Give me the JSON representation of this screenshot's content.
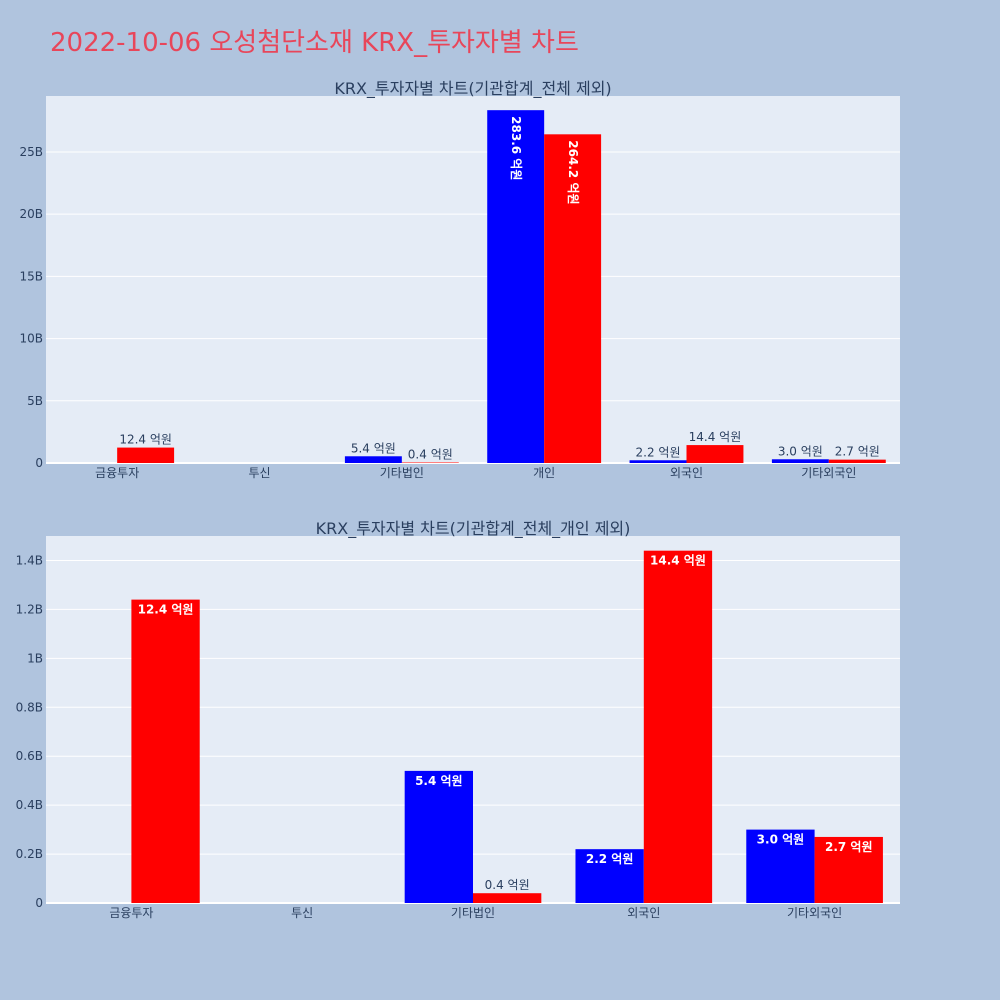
{
  "page": {
    "title": "2022-10-06 오성첨단소재 KRX_투자자별 차트"
  },
  "colors": {
    "background": "#b0c4de",
    "plot_bg": "#e5ecf6",
    "title": "#e8465a",
    "series_blue": "#0000ff",
    "series_red": "#ff0000"
  },
  "chart_data": [
    {
      "type": "bar",
      "title": "KRX_투자자별 차트(기관합계_전체 제외)",
      "categories": [
        "금융투자",
        "투신",
        "기타법인",
        "개인",
        "외국인",
        "기타외국인"
      ],
      "series": [
        {
          "color": "#0000ff",
          "values": [
            0,
            0,
            0.54,
            28.36,
            0.22,
            0.3
          ],
          "labels": [
            "",
            "",
            "5.4 억원",
            "283.6 억원",
            "2.2 억원",
            "3.0 억원"
          ]
        },
        {
          "color": "#ff0000",
          "values": [
            1.24,
            0,
            0.04,
            26.42,
            1.44,
            0.27
          ],
          "labels": [
            "12.4 억원",
            "",
            "0.4 억원",
            "264.2 억원",
            "14.4 억원",
            "2.7 억원"
          ]
        }
      ],
      "ylim": [
        0,
        29.5
      ],
      "yticks": [
        0,
        5,
        10,
        15,
        20,
        25
      ],
      "ytick_labels": [
        "0",
        "5B",
        "10B",
        "15B",
        "20B",
        "25B"
      ],
      "grid": true,
      "legend": "none"
    },
    {
      "type": "bar",
      "title": "KRX_투자자별 차트(기관합계_전체_개인 제외)",
      "categories": [
        "금융투자",
        "투신",
        "기타법인",
        "외국인",
        "기타외국인"
      ],
      "series": [
        {
          "color": "#0000ff",
          "values": [
            0,
            0,
            0.54,
            0.22,
            0.3
          ],
          "labels": [
            "",
            "",
            "5.4 억원",
            "2.2 억원",
            "3.0 억원"
          ]
        },
        {
          "color": "#ff0000",
          "values": [
            1.24,
            0,
            0.04,
            1.44,
            0.27
          ],
          "labels": [
            "12.4 억원",
            "",
            "0.4 억원",
            "14.4 억원",
            "2.7 억원"
          ]
        }
      ],
      "ylim": [
        0,
        1.5
      ],
      "yticks": [
        0,
        0.2,
        0.4,
        0.6,
        0.8,
        1.0,
        1.2,
        1.4
      ],
      "ytick_labels": [
        "0",
        "0.2B",
        "0.4B",
        "0.6B",
        "0.8B",
        "1B",
        "1.2B",
        "1.4B"
      ],
      "grid": true,
      "legend": "none"
    }
  ]
}
